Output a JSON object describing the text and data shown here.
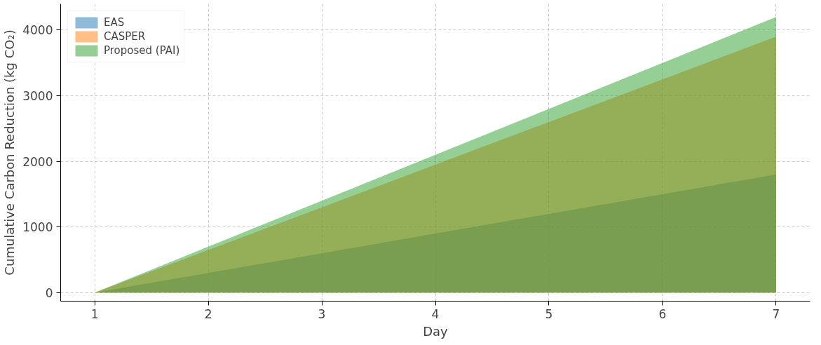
{
  "chart_data": {
    "type": "area",
    "xlabel": "Day",
    "ylabel": "Cumulative Carbon Reduction (kg CO₂)",
    "x": [
      1,
      2,
      3,
      4,
      5,
      6,
      7
    ],
    "series": [
      {
        "name": "EAS",
        "color": "#1f77b4",
        "values": [
          0,
          300,
          600,
          900,
          1200,
          1500,
          1800
        ]
      },
      {
        "name": "CASPER",
        "color": "#ff7f0e",
        "values": [
          0,
          650,
          1300,
          1950,
          2600,
          3250,
          3900
        ]
      },
      {
        "name": "Proposed (PAI)",
        "color": "#2ca02c",
        "values": [
          0,
          700,
          1400,
          2100,
          2800,
          3500,
          4200
        ]
      }
    ],
    "xlim": [
      0.7,
      7.3
    ],
    "ylim": [
      -130,
      4400
    ],
    "xticks": [
      1,
      2,
      3,
      4,
      5,
      6,
      7
    ],
    "yticks": [
      0,
      1000,
      2000,
      3000,
      4000
    ],
    "grid": true,
    "legend": "top left"
  }
}
